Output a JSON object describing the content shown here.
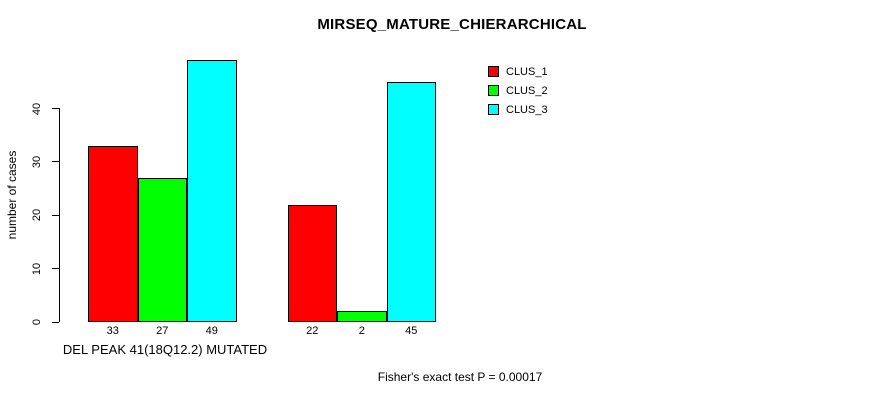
{
  "chart_data": {
    "type": "bar",
    "title": "MIRSEQ_MATURE_CHIERARCHICAL",
    "ylabel": "number of cases",
    "xlabel": "DEL PEAK 41(18Q12.2) MUTATED",
    "footer": "Fisher's exact test P = 0.00017",
    "ylim": [
      0,
      40
    ],
    "yticks": [
      0,
      10,
      20,
      30,
      40
    ],
    "grid": false,
    "background": "#ffffff",
    "axis_color": "#000000",
    "legend_position": "top-right",
    "groups": [
      "DEL PEAK 41(18Q12.2) MUTATED",
      ""
    ],
    "series": [
      {
        "name": "CLUS_1",
        "color": "#ff0000",
        "values": [
          33,
          22
        ]
      },
      {
        "name": "CLUS_2",
        "color": "#00ff00",
        "values": [
          27,
          2
        ]
      },
      {
        "name": "CLUS_3",
        "color": "#00ffff",
        "values": [
          49,
          45
        ]
      }
    ],
    "bar_value_labels": [
      [
        33,
        27,
        49
      ],
      [
        22,
        2,
        45
      ]
    ]
  }
}
